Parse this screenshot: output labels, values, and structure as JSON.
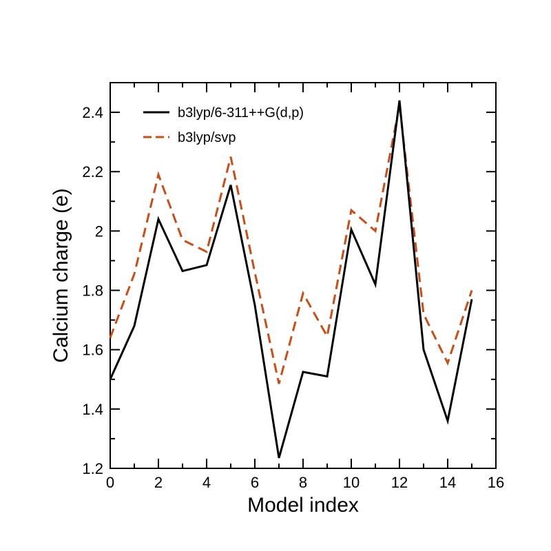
{
  "chart_data": {
    "type": "line",
    "xlabel": "Model index",
    "ylabel": "Calcium charge (e)",
    "xlim": [
      0,
      16
    ],
    "ylim": [
      1.2,
      2.5
    ],
    "xticks": [
      "0",
      "2",
      "4",
      "6",
      "8",
      "10",
      "12",
      "14",
      "16"
    ],
    "yticks": [
      "1.2",
      "1.4",
      "1.6",
      "1.8",
      "2",
      "2.2",
      "2.4"
    ],
    "grid": false,
    "legend_position": "top-left",
    "x": [
      0,
      1,
      2,
      3,
      4,
      5,
      6,
      7,
      8,
      9,
      10,
      11,
      12,
      13,
      14,
      15
    ],
    "series": [
      {
        "name": "b3lyp/6-311++G(d,p)",
        "color": "#000000",
        "style": "solid",
        "values": [
          1.5,
          1.68,
          2.04,
          1.865,
          1.885,
          2.155,
          1.75,
          1.235,
          1.525,
          1.51,
          2.005,
          1.82,
          2.44,
          1.6,
          1.36,
          1.77
        ]
      },
      {
        "name": "b3lyp/svp",
        "color": "#cc4c14",
        "style": "dashed",
        "values": [
          1.64,
          1.855,
          2.19,
          1.97,
          1.93,
          2.25,
          1.86,
          1.485,
          1.79,
          1.645,
          2.07,
          2.0,
          2.425,
          1.72,
          1.555,
          1.8
        ]
      }
    ]
  }
}
